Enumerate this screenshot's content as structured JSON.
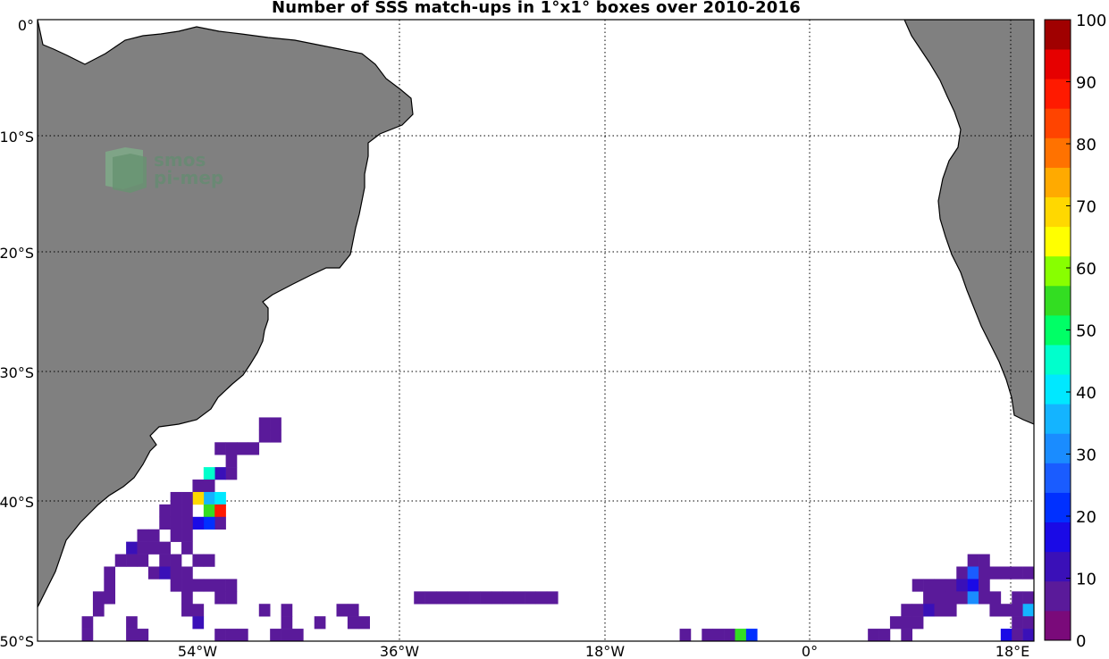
{
  "title": "Number of SSS match-ups in 1°x1° boxes over 2010-2016",
  "watermark": {
    "line1": "smos",
    "line2": "pi-mep"
  },
  "lat_labels": [
    "0°",
    "10°S",
    "20°S",
    "30°S",
    "40°S",
    "50°S"
  ],
  "lon_labels": [
    "54°W",
    "36°W",
    "18°W",
    "0°",
    "18°E"
  ],
  "colorbar": {
    "ticks": [
      "0",
      "10",
      "20",
      "30",
      "40",
      "50",
      "60",
      "70",
      "80",
      "90",
      "100"
    ],
    "range": [
      0,
      100
    ],
    "colors": [
      "#7a0a7a",
      "#5a1a9a",
      "#3a10b8",
      "#1a0ae6",
      "#0030ff",
      "#1a5cff",
      "#1a8cff",
      "#14b4ff",
      "#00e8ff",
      "#00ffcc",
      "#00ff66",
      "#33dd22",
      "#88ff00",
      "#ffff00",
      "#ffd800",
      "#ffaa00",
      "#ff7200",
      "#ff4400",
      "#ff1a00",
      "#e60000",
      "#a00000"
    ]
  },
  "chart_data": {
    "type": "heatmap",
    "title": "Number of SSS match-ups in 1°x1° boxes over 2010-2016",
    "lon_range": [
      -70,
      20
    ],
    "lat_range": [
      -50,
      0
    ],
    "value_range": [
      0,
      100
    ],
    "cells": [
      [
        -49,
        -32,
        3
      ],
      [
        -50,
        -32,
        3
      ],
      [
        -49,
        -33,
        3
      ],
      [
        -50,
        -33,
        3
      ],
      [
        -51,
        -34,
        3
      ],
      [
        -52,
        -34,
        3
      ],
      [
        -53,
        -34,
        3
      ],
      [
        -54,
        -34,
        3
      ],
      [
        -53,
        -35,
        3
      ],
      [
        -53,
        -36,
        3
      ],
      [
        -54,
        -36,
        12
      ],
      [
        -55,
        -36,
        45
      ],
      [
        -56,
        -37,
        3
      ],
      [
        -55,
        -37,
        5
      ],
      [
        -55,
        -38,
        35
      ],
      [
        -54,
        -38,
        40
      ],
      [
        -56,
        -38,
        70
      ],
      [
        -55,
        -39,
        55
      ],
      [
        -54,
        -39,
        92
      ],
      [
        -54,
        -40,
        5
      ],
      [
        -55,
        -40,
        18
      ],
      [
        -56,
        -40,
        15
      ],
      [
        -57,
        -38,
        3
      ],
      [
        -57,
        -39,
        3
      ],
      [
        -57,
        -40,
        3
      ],
      [
        -58,
        -38,
        3
      ],
      [
        -58,
        -39,
        3
      ],
      [
        -59,
        -39,
        3
      ],
      [
        -59,
        -40,
        3
      ],
      [
        -58,
        -40,
        3
      ],
      [
        -60,
        -41,
        3
      ],
      [
        -61,
        -41,
        3
      ],
      [
        -58,
        -41,
        3
      ],
      [
        -59,
        -42,
        3
      ],
      [
        -57,
        -41,
        3
      ],
      [
        -57,
        -42,
        3
      ],
      [
        -62,
        -42,
        8
      ],
      [
        -61,
        -42,
        3
      ],
      [
        -60,
        -42,
        3
      ],
      [
        -63,
        -43,
        3
      ],
      [
        -62,
        -43,
        3
      ],
      [
        -61,
        -43,
        5
      ],
      [
        -59,
        -43,
        3
      ],
      [
        -58,
        -43,
        3
      ],
      [
        -56,
        -43,
        3
      ],
      [
        -55,
        -43,
        3
      ],
      [
        -60,
        -44,
        3
      ],
      [
        -59,
        -44,
        10
      ],
      [
        -58,
        -44,
        3
      ],
      [
        -57,
        -44,
        3
      ],
      [
        -64,
        -44,
        3
      ],
      [
        -64,
        -45,
        3
      ],
      [
        -58,
        -45,
        3
      ],
      [
        -57,
        -45,
        3
      ],
      [
        -56,
        -45,
        3
      ],
      [
        -55,
        -45,
        3
      ],
      [
        -54,
        -45,
        3
      ],
      [
        -53,
        -45,
        3
      ],
      [
        -64,
        -46,
        3
      ],
      [
        -57,
        -46,
        3
      ],
      [
        -54,
        -46,
        3
      ],
      [
        -53,
        -46,
        3
      ],
      [
        -65,
        -46,
        3
      ],
      [
        -65,
        -47,
        3
      ],
      [
        -57,
        -47,
        3
      ],
      [
        -56,
        -47,
        3
      ],
      [
        -50,
        -47,
        3
      ],
      [
        -48,
        -47,
        3
      ],
      [
        -43,
        -47,
        3
      ],
      [
        -42,
        -47,
        3
      ],
      [
        -62,
        -48,
        3
      ],
      [
        -56,
        -48,
        8
      ],
      [
        -48,
        -48,
        3
      ],
      [
        -45,
        -48,
        3
      ],
      [
        -42,
        -48,
        3
      ],
      [
        -41,
        -48,
        3
      ],
      [
        -66,
        -48,
        3
      ],
      [
        -66,
        -49,
        3
      ],
      [
        -62,
        -49,
        3
      ],
      [
        -61,
        -49,
        3
      ],
      [
        -54,
        -49,
        3
      ],
      [
        -53,
        -49,
        3
      ],
      [
        -52,
        -49,
        3
      ],
      [
        -49,
        -49,
        3
      ],
      [
        -48,
        -49,
        3
      ],
      [
        -47,
        -49,
        3
      ],
      [
        -52,
        -50,
        3
      ],
      [
        -36,
        -46,
        5
      ],
      [
        -35,
        -46,
        3
      ],
      [
        -34,
        -46,
        3
      ],
      [
        -33,
        -46,
        5
      ],
      [
        -32,
        -46,
        3
      ],
      [
        -31,
        -46,
        3
      ],
      [
        -30,
        -46,
        5
      ],
      [
        -29,
        -46,
        3
      ],
      [
        -28,
        -46,
        3
      ],
      [
        -27,
        -46,
        3
      ],
      [
        -26,
        -46,
        3
      ],
      [
        -25,
        -46,
        3
      ],
      [
        -24,
        -46,
        3
      ],
      [
        -12,
        -49,
        3
      ],
      [
        -12,
        -50,
        3
      ],
      [
        -10,
        -49,
        3
      ],
      [
        -9,
        -49,
        3
      ],
      [
        -8,
        -49,
        3
      ],
      [
        -7,
        -49,
        55
      ],
      [
        -6,
        -49,
        20
      ],
      [
        -8,
        -50,
        8
      ],
      [
        -7,
        -50,
        8
      ],
      [
        -6,
        -50,
        8
      ],
      [
        14,
        -43,
        3
      ],
      [
        15,
        -43,
        3
      ],
      [
        13,
        -44,
        3
      ],
      [
        14,
        -44,
        25
      ],
      [
        15,
        -44,
        3
      ],
      [
        16,
        -44,
        3
      ],
      [
        17,
        -44,
        3
      ],
      [
        18,
        -44,
        3
      ],
      [
        19,
        -44,
        3
      ],
      [
        10,
        -45,
        3
      ],
      [
        11,
        -45,
        3
      ],
      [
        12,
        -45,
        5
      ],
      [
        13,
        -45,
        10
      ],
      [
        14,
        -45,
        15
      ],
      [
        15,
        -45,
        3
      ],
      [
        9,
        -45,
        3
      ],
      [
        10,
        -46,
        3
      ],
      [
        11,
        -46,
        3
      ],
      [
        12,
        -46,
        3
      ],
      [
        13,
        -46,
        5
      ],
      [
        14,
        -46,
        32
      ],
      [
        15,
        -46,
        3
      ],
      [
        16,
        -46,
        3
      ],
      [
        18,
        -46,
        3
      ],
      [
        19,
        -46,
        3
      ],
      [
        8,
        -47,
        3
      ],
      [
        9,
        -47,
        3
      ],
      [
        10,
        -47,
        12
      ],
      [
        11,
        -47,
        5
      ],
      [
        12,
        -47,
        3
      ],
      [
        16,
        -47,
        3
      ],
      [
        17,
        -47,
        3
      ],
      [
        18,
        -47,
        3
      ],
      [
        19,
        -47,
        35
      ],
      [
        7,
        -48,
        3
      ],
      [
        8,
        -48,
        3
      ],
      [
        9,
        -48,
        3
      ],
      [
        18,
        -48,
        3
      ],
      [
        19,
        -48,
        3
      ],
      [
        5,
        -49,
        3
      ],
      [
        6,
        -49,
        3
      ],
      [
        8,
        -49,
        3
      ],
      [
        17,
        -49,
        15
      ],
      [
        18,
        -49,
        3
      ],
      [
        19,
        -49,
        12
      ],
      [
        5,
        -50,
        3
      ],
      [
        18,
        -50,
        3
      ],
      [
        19,
        -50,
        3
      ]
    ]
  }
}
